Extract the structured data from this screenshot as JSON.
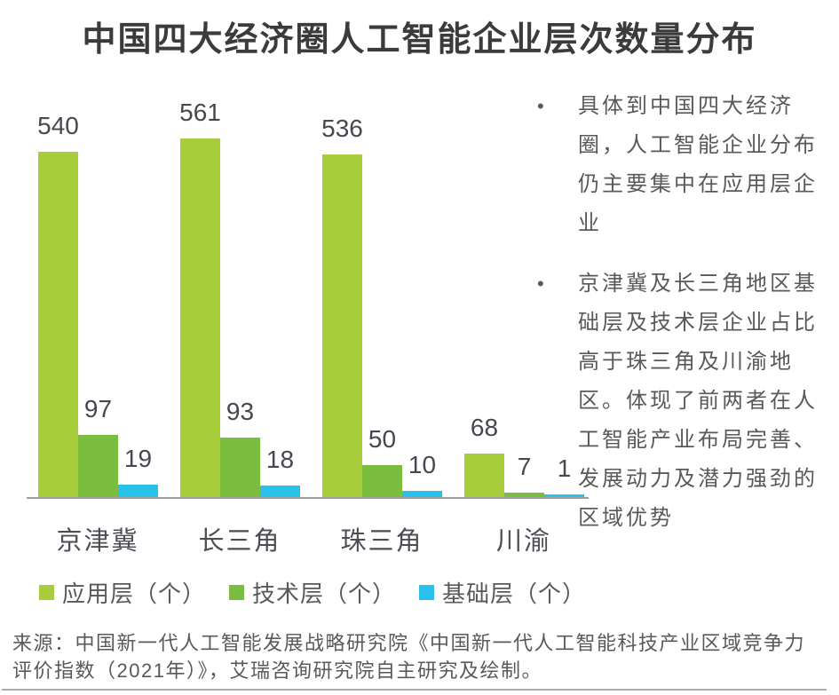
{
  "title": "中国四大经济圈人工智能企业层次数量分布",
  "chart_data": {
    "type": "bar",
    "categories": [
      "京津冀",
      "长三角",
      "珠三角",
      "川渝"
    ],
    "series": [
      {
        "key": "app-layer",
        "name": "应用层（个）",
        "color": "#a8cd3a",
        "values": [
          540,
          561,
          536,
          68
        ]
      },
      {
        "key": "tech-layer",
        "name": "技术层（个）",
        "color": "#7abd3f",
        "values": [
          97,
          93,
          50,
          7
        ]
      },
      {
        "key": "base-layer",
        "name": "基础层（个）",
        "color": "#29c1e9",
        "values": [
          19,
          18,
          10,
          1
        ]
      }
    ],
    "ylim": [
      0,
      600
    ],
    "grid": false,
    "value_labels": true,
    "legend_position": "bottom",
    "axis_line_color": "#9c9c9c"
  },
  "notes": {
    "bullets": [
      "具体到中国四大经济圈，人工智能企业分布仍主要集中在应用层企业",
      "京津冀及长三角地区基础层及技术层企业占比高于珠三角及川渝地区。体现了前两者在人工智能产业布局完善、发展动力及潜力强劲的区域优势"
    ]
  },
  "source": {
    "text": "来源：中国新一代人工智能发展战略研究院《中国新一代人工智能科技产业区域竞争力评价指数（2021年）》，艾瑞咨询研究院自主研究及绘制。"
  },
  "colors": {
    "title_text": "#3b3b3b",
    "body_text": "#595959",
    "value_label_text": "#45484f"
  }
}
